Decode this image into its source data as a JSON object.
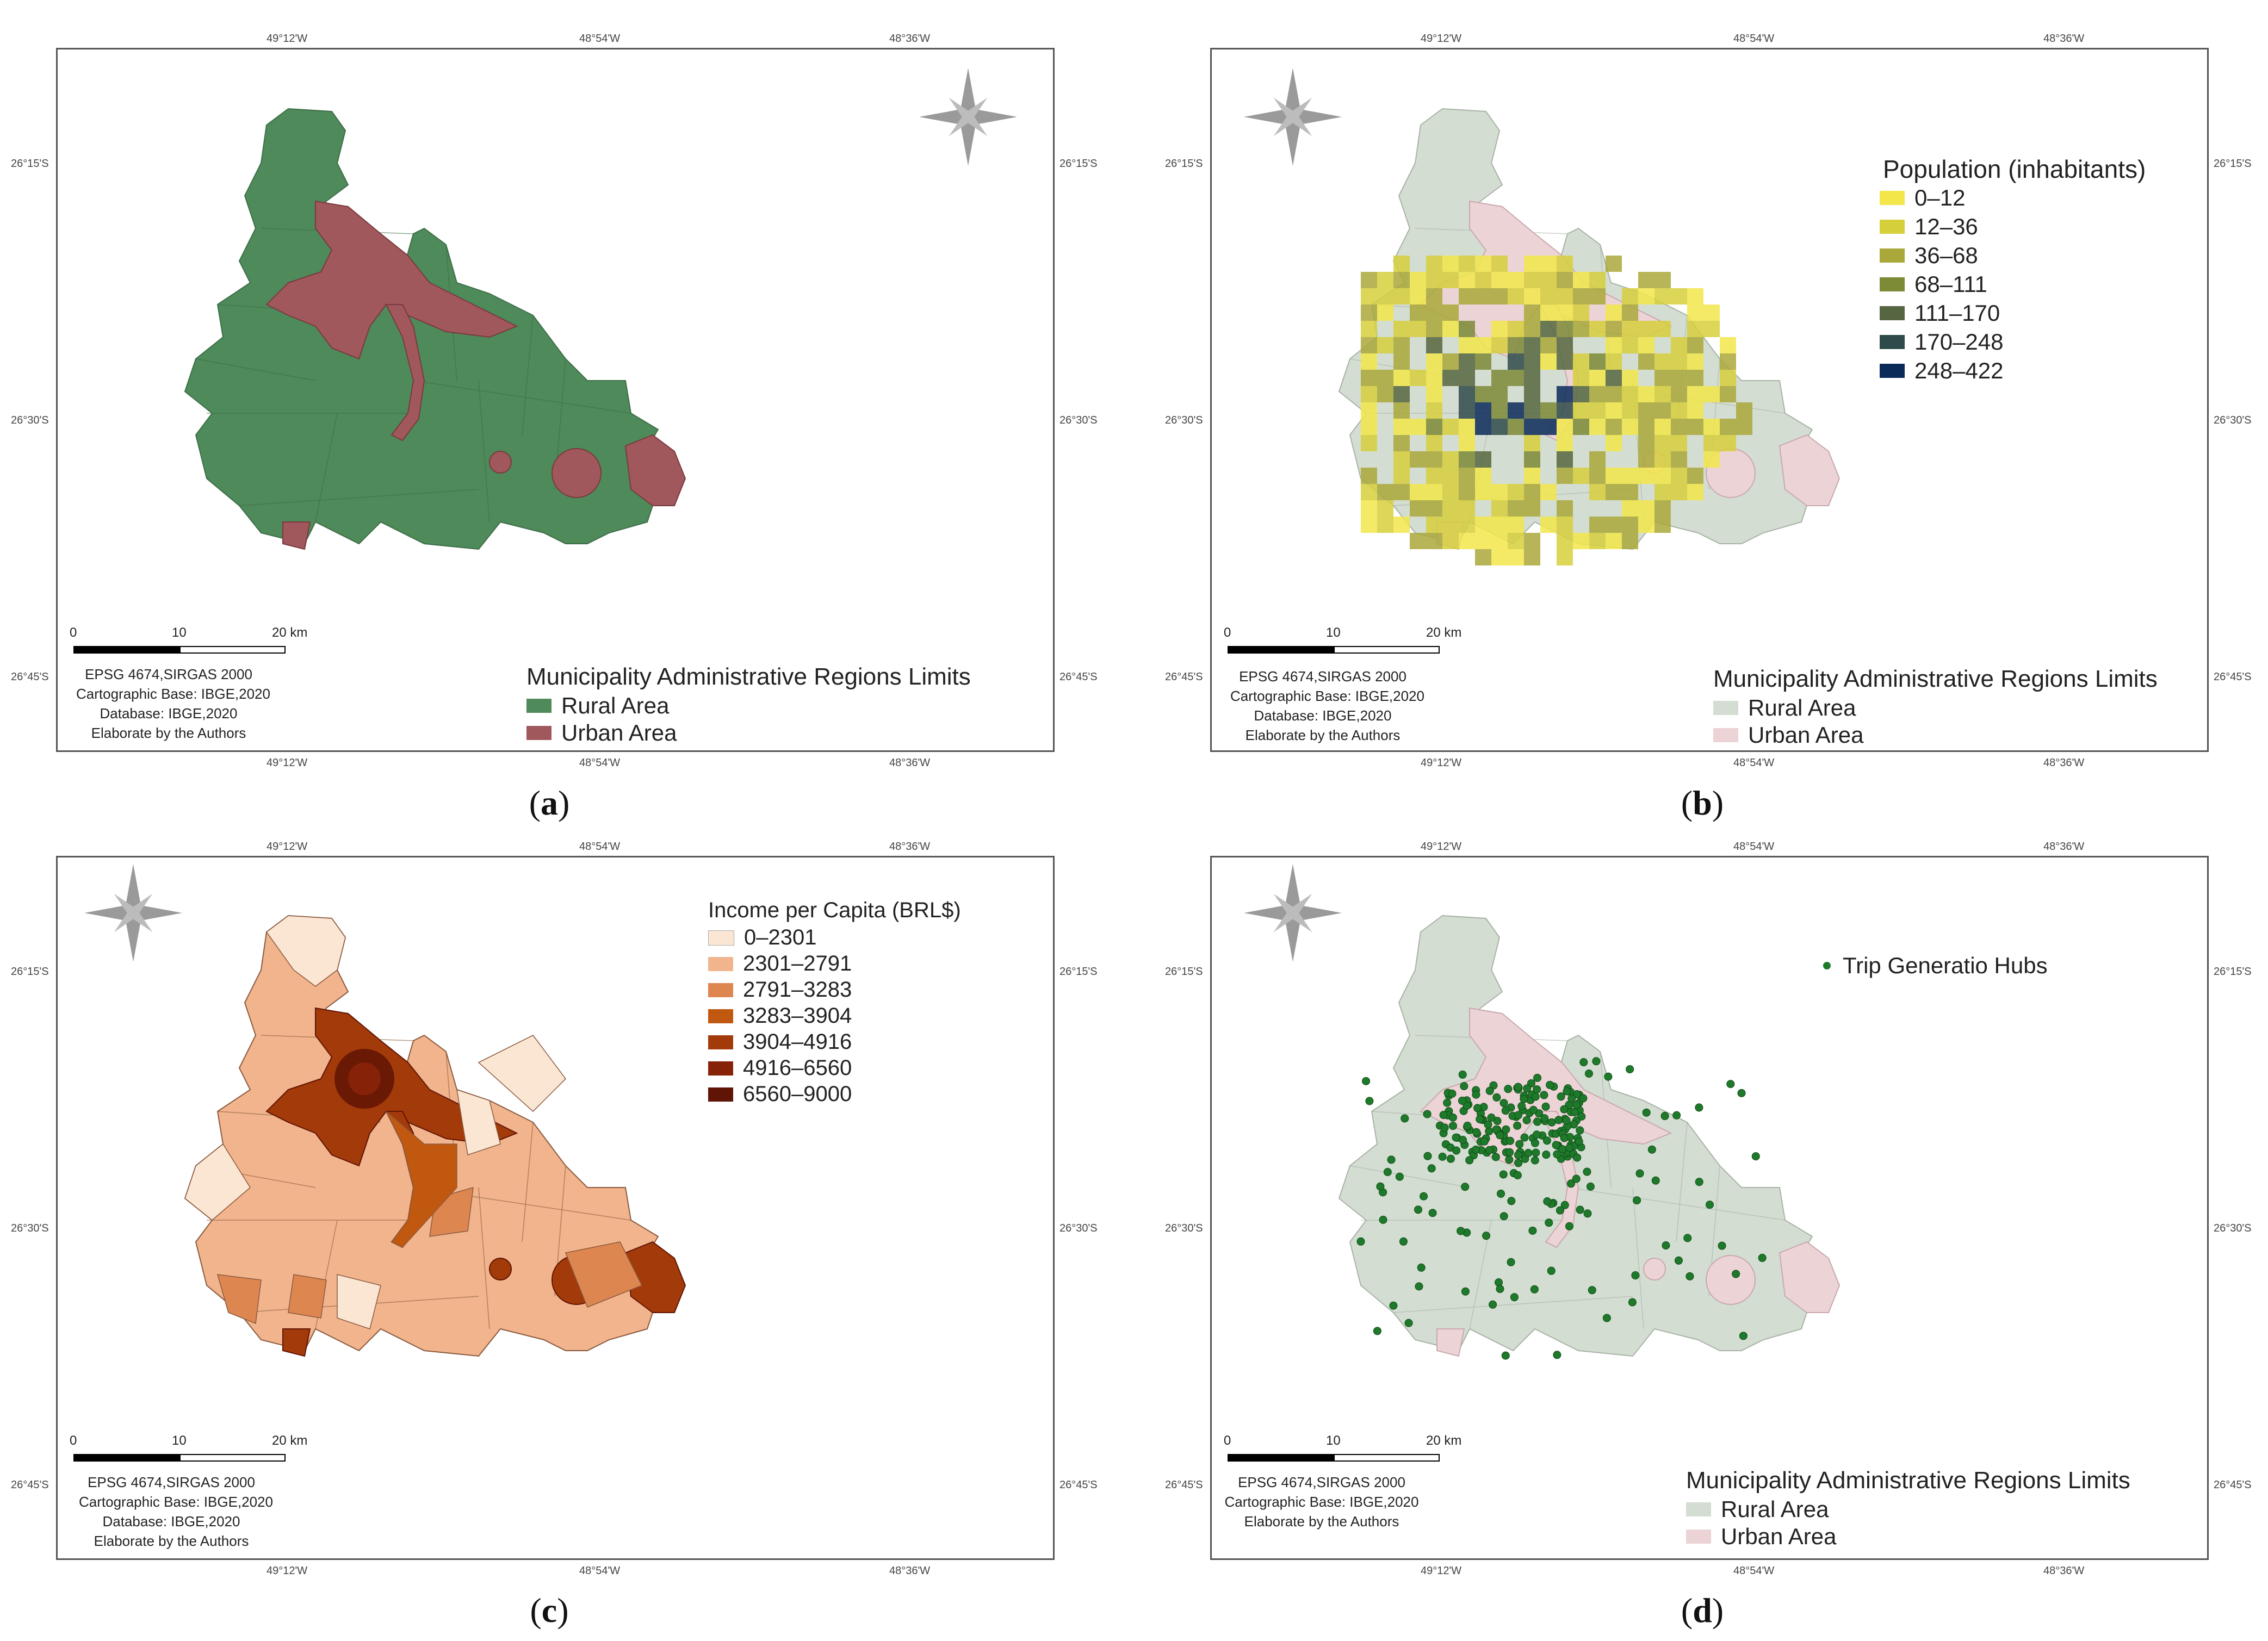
{
  "coords": {
    "top": [
      "49°12'W",
      "48°54'W",
      "48°36'W"
    ],
    "left": [
      "26°15'S",
      "26°30'S",
      "26°45'S"
    ],
    "right": [
      "26°15'S",
      "26°30'S",
      "26°45'S"
    ]
  },
  "scale": {
    "labels": [
      "0",
      "10",
      "20 km"
    ]
  },
  "panels": {
    "a": {
      "caption": "a",
      "meta": [
        "EPSG 4674,SIRGAS 2000",
        "Cartographic Base: IBGE,2020",
        "Database: IBGE,2020",
        "Elaborate by the Authors"
      ],
      "legend_title": "Municipality Administrative Regions Limits",
      "legend": [
        {
          "label": "Rural Area",
          "color": "#4e8a5a"
        },
        {
          "label": "Urban Area",
          "color": "#a0585c"
        }
      ]
    },
    "b": {
      "caption": "b",
      "meta": [
        "EPSG 4674,SIRGAS 2000",
        "Cartographic Base: IBGE,2020",
        "Database: IBGE,2020",
        "Elaborate by the Authors"
      ],
      "pop_title": "Population (inhabitants)",
      "pop_legend": [
        {
          "label": "0–12",
          "color": "#f2e64a"
        },
        {
          "label": "12–36",
          "color": "#d6cf3c"
        },
        {
          "label": "36–68",
          "color": "#aaa83a"
        },
        {
          "label": "68–111",
          "color": "#7d8a36"
        },
        {
          "label": "111–170",
          "color": "#566640"
        },
        {
          "label": "170–248",
          "color": "#2f4a4a"
        },
        {
          "label": "248–422",
          "color": "#0b2a5a"
        }
      ],
      "legend_title": "Municipality Administrative Regions Limits",
      "legend": [
        {
          "label": "Rural Area",
          "color": "#d4ddd2"
        },
        {
          "label": "Urban Area",
          "color": "#ecd3d6"
        }
      ]
    },
    "c": {
      "caption": "c",
      "meta": [
        "EPSG 4674,SIRGAS 2000",
        "Cartographic Base: IBGE,2020",
        "Database: IBGE,2020",
        "Elaborate by the Authors"
      ],
      "legend_title": "Income per Capita (BRL$)",
      "legend": [
        {
          "label": "0–2301",
          "color": "#fbe6d3"
        },
        {
          "label": "2301–2791",
          "color": "#f1b48c"
        },
        {
          "label": "2791–3283",
          "color": "#dd8650"
        },
        {
          "label": "3283–3904",
          "color": "#c0580f"
        },
        {
          "label": "3904–4916",
          "color": "#a33a0a"
        },
        {
          "label": "4916–6560",
          "color": "#862208"
        },
        {
          "label": "6560–9000",
          "color": "#601405"
        }
      ]
    },
    "d": {
      "caption": "d",
      "meta": [
        "EPSG 4674,SIRGAS 2000",
        "Cartographic Base: IBGE,2020",
        "Elaborate by the Authors"
      ],
      "hubs_label": "Trip Generatio Hubs",
      "hubs_color": "#1e7a2a",
      "legend_title": "Municipality Administrative Regions Limits",
      "legend": [
        {
          "label": "Rural Area",
          "color": "#d4ddd2"
        },
        {
          "label": "Urban Area",
          "color": "#ecd3d6"
        }
      ]
    }
  }
}
